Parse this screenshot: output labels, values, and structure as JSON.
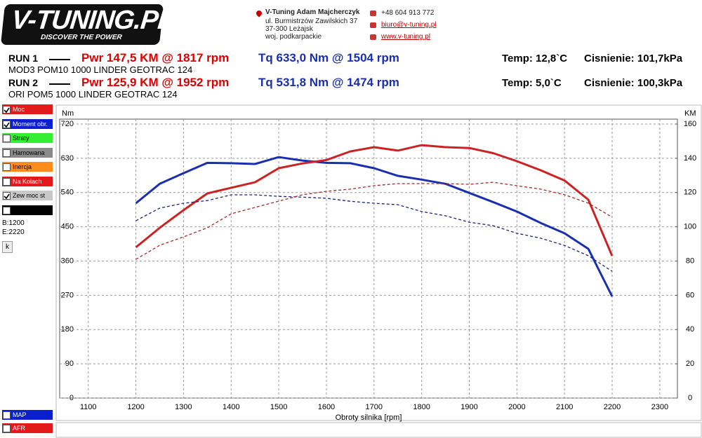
{
  "header": {
    "logo": "V-TUNING.PL",
    "slogan": "DISCOVER THE POWER",
    "company": "V-Tuning Adam Majcherczyk",
    "address": [
      "ul. Burmistrzów Zawilskich 37",
      "37-300 Leżajsk",
      "woj. podkarpackie"
    ],
    "phone": "+48 604 913 772",
    "email": "biuro@v-tuning.pl",
    "web": "www.v-tuning.pl"
  },
  "runs": [
    {
      "label": "RUN 1",
      "pwr": "Pwr  147,5 KM @ 1817 rpm",
      "tq": "Tq 633,0 Nm @ 1504 rpm",
      "temp": "Temp: 12,8`C",
      "pressure": "Cisnienie: 101,7kPa",
      "description": "MOD3 POM10 1000 LINDER GEOTRAC 124"
    },
    {
      "label": "RUN 2",
      "pwr": "Pwr  125,9 KM @ 1952 rpm",
      "tq": "Tq 531,8 Nm @ 1474 rpm",
      "temp": "Temp: 5,0`C",
      "pressure": "Cisnienie: 100,3kPa",
      "description": "ORI POM5 1000 LINDER GEOTRAC 124"
    }
  ],
  "panel": {
    "checkboxes": [
      {
        "label": "Moc",
        "color": "#e31a1a",
        "checked": true
      },
      {
        "label": "Moment obr.",
        "color": "#0a1fd0",
        "checked": true
      },
      {
        "label": "Straty",
        "color": "#33ee33",
        "checked": false
      },
      {
        "label": "Hamowana",
        "color": "#8a8a8a",
        "checked": false
      },
      {
        "label": "Inercja",
        "color": "#ff8c1a",
        "checked": false
      },
      {
        "label": "Na Kolach",
        "color": "#e31a1a",
        "checked": false
      },
      {
        "label": "Zew moc st",
        "color": "#c8c8c8",
        "checked": true
      },
      {
        "color": "#000000",
        "checked": false
      }
    ],
    "begin": "B:1200",
    "end": "E:2220",
    "button": "k",
    "bottom_checkboxes": [
      {
        "label": "MAP",
        "color": "#0a1fd0",
        "checked": false
      },
      {
        "label": "AFR",
        "color": "#e31a1a",
        "checked": false
      }
    ]
  },
  "chart_data": {
    "type": "line",
    "ylabel": "Nm",
    "y2label": "KM",
    "xlabel": "Obroty silnika [rpm]",
    "x": [
      1200,
      1250,
      1300,
      1350,
      1400,
      1450,
      1500,
      1550,
      1600,
      1650,
      1700,
      1750,
      1800,
      1850,
      1900,
      1950,
      2000,
      2050,
      2100,
      2150,
      2200
    ],
    "series": [
      {
        "color": "#1a2fb0",
        "style": "solid",
        "axis": "y",
        "values": [
          512,
          563,
          591,
          618,
          617,
          615,
          633,
          624,
          618,
          617,
          604,
          584,
          574,
          563,
          539,
          515,
          490,
          460,
          433,
          392,
          267
        ]
      },
      {
        "color": "#cc2222",
        "style": "solid",
        "axis": "y2",
        "values": [
          88,
          99.4,
          109.7,
          119.5,
          122.8,
          126,
          134.2,
          137,
          139,
          144,
          146.5,
          144.5,
          147.7,
          146.5,
          146,
          143,
          138.3,
          133,
          127,
          115.8,
          83
        ]
      },
      {
        "color": "#1a237e",
        "style": "dashed",
        "axis": "y",
        "values": [
          466,
          499,
          512,
          519,
          534,
          534,
          530,
          528,
          525,
          517,
          512,
          508,
          490,
          479,
          462,
          453,
          433,
          420,
          401,
          374,
          333
        ]
      },
      {
        "color": "#a52a2a",
        "style": "dashed",
        "axis": "y2",
        "values": [
          81,
          89.2,
          94.1,
          99.4,
          107.6,
          111.3,
          115,
          118.7,
          120.7,
          122,
          124,
          125.2,
          125.2,
          125.2,
          124.8,
          126,
          124,
          122,
          118.7,
          113.8,
          105.6
        ]
      }
    ],
    "xlim": [
      1040,
      2337
    ],
    "xticks": [
      1100,
      1200,
      1300,
      1400,
      1500,
      1600,
      1700,
      1800,
      1900,
      2000,
      2100,
      2200,
      2300
    ],
    "ylim": [
      0,
      720
    ],
    "yticks": [
      0,
      90,
      180,
      270,
      360,
      450,
      540,
      630,
      720
    ],
    "y2lim": [
      0,
      160
    ],
    "y2ticks": [
      0,
      20,
      40,
      60,
      80,
      100,
      120,
      140,
      160
    ],
    "grid": true
  }
}
